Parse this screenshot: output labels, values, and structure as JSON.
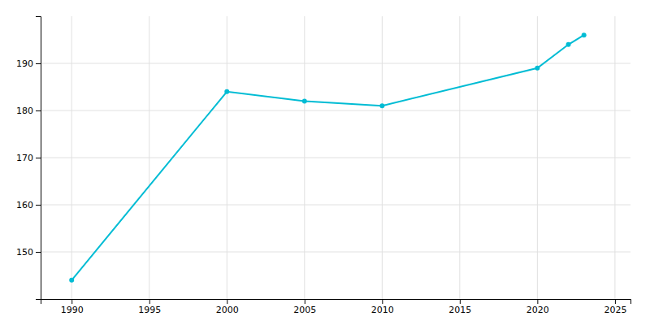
{
  "chart_data": {
    "type": "line",
    "x": [
      1990,
      2000,
      2005,
      2010,
      2020,
      2022,
      2023
    ],
    "values": [
      144,
      184,
      182,
      181,
      189,
      194,
      196
    ],
    "color": "#00BCD4",
    "marker": "circle",
    "xlim": [
      1988,
      2026
    ],
    "ylim": [
      140,
      200
    ],
    "xticks": [
      1990,
      1995,
      2000,
      2005,
      2010,
      2015,
      2020,
      2025
    ],
    "yticks": [
      150,
      160,
      170,
      180,
      190
    ],
    "grid": true
  }
}
